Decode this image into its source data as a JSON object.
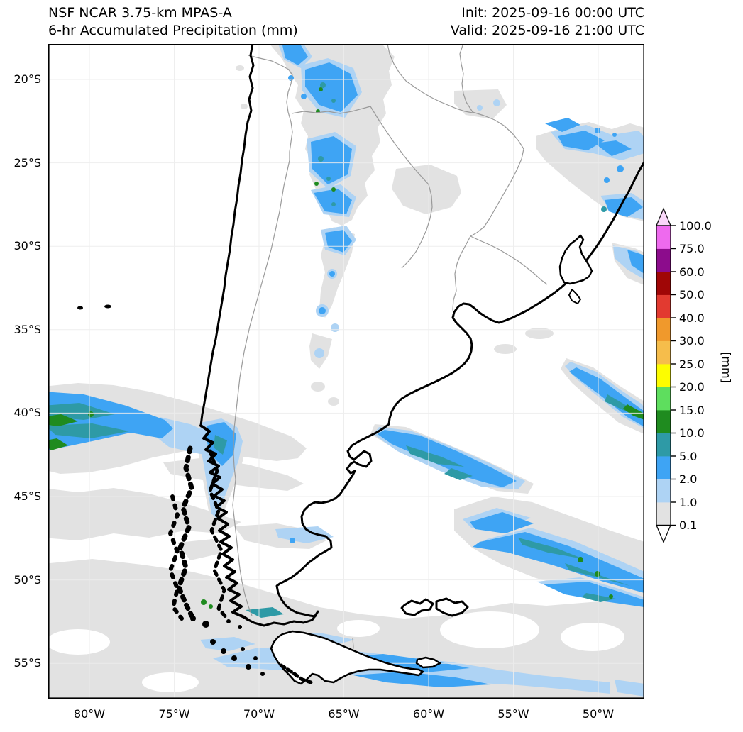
{
  "header": {
    "title_line1": "NSF NCAR 3.75-km MPAS-A",
    "title_line2": "6-hr Accumulated Precipitation (mm)",
    "init_label": "Init: 2025-09-16 00:00 UTC",
    "valid_label": "Valid: 2025-09-16 21:00 UTC"
  },
  "map": {
    "x_ticks": [
      "80°W",
      "75°W",
      "70°W",
      "65°W",
      "60°W",
      "55°W",
      "50°W"
    ],
    "y_ticks": [
      "20°S",
      "25°S",
      "30°S",
      "35°S",
      "40°S",
      "45°S",
      "50°S",
      "55°S"
    ]
  },
  "colorbar": {
    "unit": "[mm]",
    "levels": [
      "0.1",
      "1.0",
      "2.0",
      "5.0",
      "10.0",
      "15.0",
      "20.0",
      "25.0",
      "30.0",
      "40.0",
      "50.0",
      "60.0",
      "75.0",
      "100.0"
    ],
    "colors": [
      "#e2e2e2",
      "#aed3f4",
      "#3ea4f4",
      "#2e9aa6",
      "#1f8b1f",
      "#5ede5e",
      "#fdfd00",
      "#f6bd4b",
      "#f0992c",
      "#e23a30",
      "#a00606",
      "#8c0c8c",
      "#ee6aee"
    ],
    "under_color": "#ffffff",
    "over_color": "#f9d7f9"
  }
}
